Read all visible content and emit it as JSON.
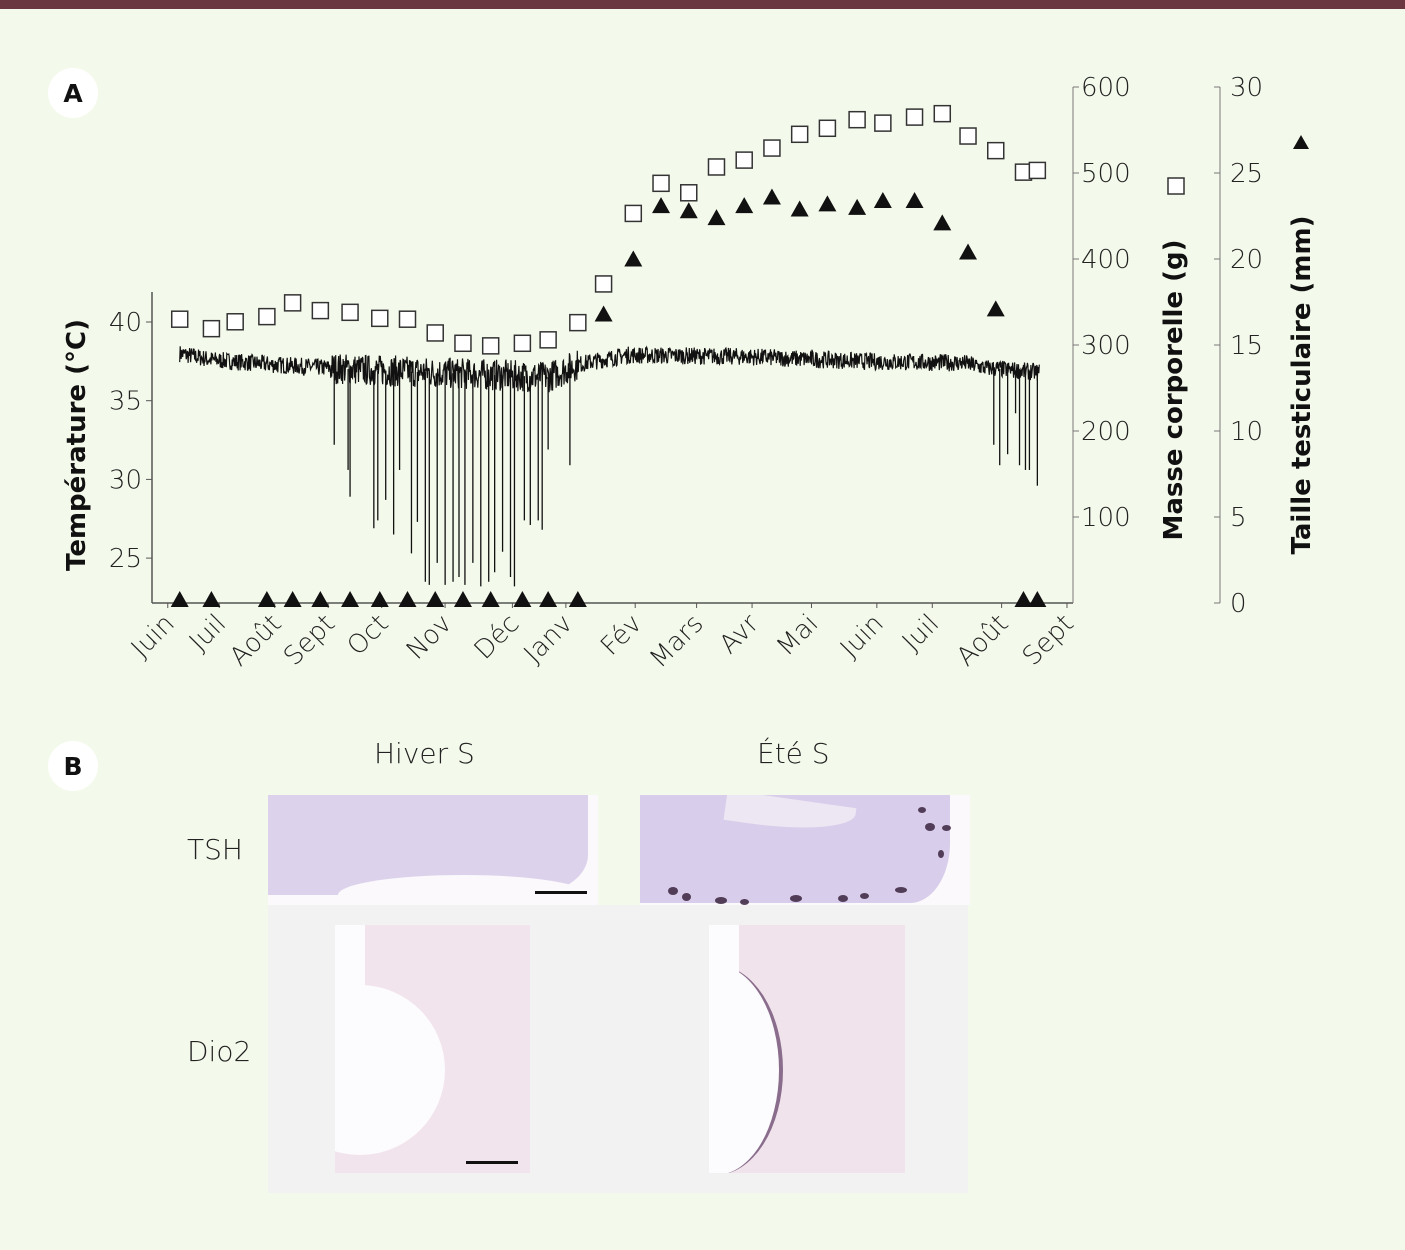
{
  "panel_a": {
    "label": "A"
  },
  "panel_b": {
    "label": "B",
    "columns": [
      "Hiver S",
      "Été S"
    ],
    "rows": [
      "TSH",
      "Dio2"
    ]
  },
  "colors": {
    "topbar": "#6a3741",
    "background": "#f4faeb"
  },
  "chart_data": {
    "type": "line",
    "x_unit": "days since start (June)",
    "xlim": [
      0,
      465
    ],
    "month_labels": [
      {
        "label": "Juin",
        "day": 12
      },
      {
        "label": "Juil",
        "day": 38
      },
      {
        "label": "Août",
        "day": 66
      },
      {
        "label": "Sept",
        "day": 93
      },
      {
        "label": "Oct",
        "day": 120
      },
      {
        "label": "Nov",
        "day": 152
      },
      {
        "label": "Déc",
        "day": 186
      },
      {
        "label": "Janv",
        "day": 213
      },
      {
        "label": "Fév",
        "day": 248
      },
      {
        "label": "Mars",
        "day": 279
      },
      {
        "label": "Avr",
        "day": 307
      },
      {
        "label": "Mai",
        "day": 337
      },
      {
        "label": "Juin",
        "day": 370
      },
      {
        "label": "Juil",
        "day": 398
      },
      {
        "label": "Août",
        "day": 433
      },
      {
        "label": "Sept",
        "day": 466
      }
    ],
    "axes": {
      "temperature": {
        "label": "Température (°C)",
        "ylim": [
          22,
          42
        ],
        "ticks": [
          25,
          30,
          35,
          40
        ]
      },
      "mass": {
        "label": "Masse corporelle (g)",
        "ylim": [
          0,
          600
        ],
        "ticks": [
          100,
          200,
          300,
          400,
          500,
          600
        ]
      },
      "testis": {
        "label": "Taille testiculaire (mm)",
        "ylim": [
          0,
          30
        ],
        "ticks": [
          0,
          5,
          10,
          15,
          20,
          25,
          30
        ]
      }
    },
    "series": [
      {
        "name": "Masse corporelle (g)",
        "marker": "open-square",
        "axis": "mass",
        "x": [
          14,
          30,
          42,
          58,
          71,
          85,
          100,
          115,
          129,
          143,
          157,
          171,
          187,
          200,
          215,
          228,
          243,
          257,
          271,
          285,
          299,
          313,
          327,
          341,
          356,
          369,
          385,
          399,
          412,
          426,
          440,
          447
        ],
        "y": [
          330,
          319,
          327,
          333,
          349,
          340,
          338,
          331,
          330,
          314,
          302,
          299,
          302,
          306,
          326,
          371,
          453,
          488,
          477,
          507,
          515,
          529,
          545,
          552,
          562,
          558,
          565,
          569,
          543,
          526,
          501,
          503
        ]
      },
      {
        "name": "Taille testiculaire (mm)",
        "marker": "filled-triangle",
        "axis": "testis",
        "x": [
          14,
          30,
          58,
          71,
          85,
          100,
          115,
          129,
          143,
          157,
          171,
          187,
          200,
          215,
          228,
          243,
          257,
          271,
          285,
          299,
          313,
          327,
          341,
          356,
          369,
          385,
          399,
          412,
          426,
          440,
          447
        ],
        "y": [
          0,
          0,
          0,
          0,
          0,
          0,
          0,
          0,
          0,
          0,
          0,
          0,
          0,
          0,
          16.6,
          19.8,
          22.9,
          22.6,
          22.2,
          22.9,
          23.4,
          22.7,
          23.0,
          22.8,
          23.2,
          23.2,
          21.9,
          20.2,
          16.9,
          0,
          0
        ]
      },
      {
        "name": "Température (°C)",
        "marker": "line",
        "axis": "temperature",
        "baseline": [
          [
            14,
            38.0
          ],
          [
            30,
            37.6
          ],
          [
            60,
            37.3
          ],
          [
            100,
            37.0
          ],
          [
            140,
            36.8
          ],
          [
            200,
            36.5
          ],
          [
            215,
            37.3
          ],
          [
            240,
            37.9
          ],
          [
            300,
            37.8
          ],
          [
            360,
            37.5
          ],
          [
            410,
            37.4
          ],
          [
            420,
            37.1
          ],
          [
            448,
            36.8
          ]
        ],
        "torpor_minima": [
          [
            92,
            32.2
          ],
          [
            99,
            30.6
          ],
          [
            100,
            28.9
          ],
          [
            112,
            26.9
          ],
          [
            114,
            27.4
          ],
          [
            118,
            28.7
          ],
          [
            122,
            26.5
          ],
          [
            125,
            30.6
          ],
          [
            131,
            25.3
          ],
          [
            134,
            27.3
          ],
          [
            138,
            23.5
          ],
          [
            140,
            23.3
          ],
          [
            144,
            24.7
          ],
          [
            148,
            23.3
          ],
          [
            152,
            23.5
          ],
          [
            155,
            23.8
          ],
          [
            158,
            23.3
          ],
          [
            162,
            24.7
          ],
          [
            166,
            23.2
          ],
          [
            170,
            23.5
          ],
          [
            173,
            24.1
          ],
          [
            177,
            25.4
          ],
          [
            181,
            23.8
          ],
          [
            183,
            23.2
          ],
          [
            188,
            27.4
          ],
          [
            191,
            27.1
          ],
          [
            195,
            27.4
          ],
          [
            197,
            26.8
          ],
          [
            200,
            31.9
          ],
          [
            211,
            30.9
          ],
          [
            425,
            32.2
          ],
          [
            428,
            30.9
          ],
          [
            432,
            31.6
          ],
          [
            436,
            34.2
          ],
          [
            438,
            30.9
          ],
          [
            441,
            30.6
          ],
          [
            443,
            30.6
          ],
          [
            447,
            29.6
          ]
        ]
      }
    ]
  }
}
